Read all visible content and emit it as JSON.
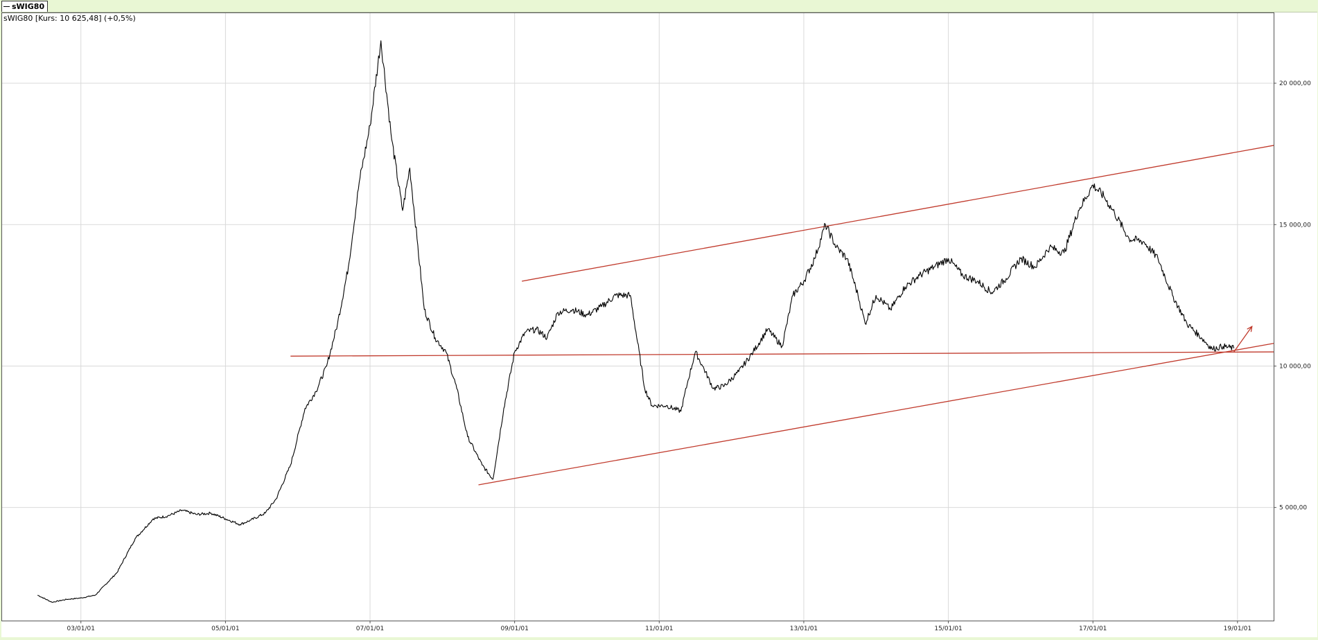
{
  "legend": {
    "label": "sWIG80"
  },
  "info_label": "sWIG80 [Kurs: 10 625,48] (+0,5%)",
  "colors": {
    "series": "#000000",
    "trendline": "#c0392b",
    "grid": "#d9d9d9",
    "frame_bg": "#ffffff",
    "page_bg": "#e9f7d4"
  },
  "chart_data": {
    "type": "line",
    "title": "",
    "xlabel": "",
    "ylabel": "",
    "x_ticks": [
      "03/01/01",
      "05/01/01",
      "07/01/01",
      "09/01/01",
      "11/01/01",
      "13/01/01",
      "15/01/01",
      "17/01/01",
      "19/01/01"
    ],
    "y_ticks": [
      {
        "value": 5000,
        "label": "5 000,00"
      },
      {
        "value": 10000,
        "label": "10 000,00"
      },
      {
        "value": 15000,
        "label": "15 000,00"
      },
      {
        "value": 20000,
        "label": "20 000,00"
      }
    ],
    "xlim": [
      2001.9,
      2019.5
    ],
    "ylim": [
      1000,
      22500
    ],
    "grid": true,
    "legend_position": "top-left",
    "series": [
      {
        "name": "sWIG80",
        "x": [
          2002.4,
          2002.6,
          2002.8,
          2003.0,
          2003.2,
          2003.5,
          2003.75,
          2004.0,
          2004.2,
          2004.4,
          2004.6,
          2004.8,
          2005.0,
          2005.2,
          2005.35,
          2005.55,
          2005.7,
          2005.9,
          2006.1,
          2006.25,
          2006.4,
          2006.55,
          2006.7,
          2006.85,
          2007.0,
          2007.15,
          2007.3,
          2007.45,
          2007.55,
          2007.65,
          2007.75,
          2007.9,
          2008.05,
          2008.2,
          2008.35,
          2008.55,
          2008.7,
          2008.85,
          2009.0,
          2009.15,
          2009.3,
          2009.45,
          2009.6,
          2009.8,
          2010.0,
          2010.2,
          2010.4,
          2010.6,
          2010.8,
          2010.9,
          2011.1,
          2011.3,
          2011.4,
          2011.5,
          2011.6,
          2011.75,
          2011.9,
          2012.1,
          2012.3,
          2012.5,
          2012.7,
          2012.85,
          2013.0,
          2013.15,
          2013.3,
          2013.45,
          2013.6,
          2013.75,
          2013.85,
          2014.0,
          2014.2,
          2014.4,
          2014.6,
          2014.8,
          2015.0,
          2015.2,
          2015.4,
          2015.6,
          2015.8,
          2016.0,
          2016.2,
          2016.4,
          2016.6,
          2016.8,
          2017.0,
          2017.15,
          2017.3,
          2017.5,
          2017.7,
          2017.9,
          2018.1,
          2018.3,
          2018.5,
          2018.65,
          2018.8,
          2018.95
        ],
        "values": [
          1900,
          1650,
          1750,
          1800,
          1900,
          2700,
          3900,
          4600,
          4700,
          4900,
          4750,
          4800,
          4600,
          4400,
          4550,
          4800,
          5300,
          6500,
          8500,
          9100,
          10000,
          11500,
          13500,
          16500,
          18500,
          21500,
          18000,
          15500,
          17000,
          14500,
          12000,
          11000,
          10500,
          9200,
          7500,
          6500,
          6000,
          8500,
          10500,
          11200,
          11300,
          11000,
          11900,
          12000,
          11800,
          12100,
          12500,
          12500,
          9200,
          8600,
          8600,
          8400,
          9500,
          10500,
          10000,
          9200,
          9300,
          9800,
          10500,
          11300,
          10700,
          12500,
          13000,
          13800,
          15000,
          14200,
          13800,
          12500,
          11500,
          12500,
          12000,
          12800,
          13200,
          13500,
          13800,
          13200,
          13000,
          12600,
          13100,
          13800,
          13500,
          14200,
          14000,
          15500,
          16400,
          16000,
          15400,
          14500,
          14400,
          13800,
          12500,
          11500,
          11000,
          10600,
          10700,
          10625
        ]
      }
    ],
    "trendlines": [
      {
        "label": "",
        "from": [
          2009.1,
          13000
        ],
        "to": [
          2019.5,
          17800
        ]
      },
      {
        "label": "",
        "from": [
          2005.9,
          10350
        ],
        "to": [
          2019.5,
          10500
        ]
      },
      {
        "label": "",
        "from": [
          2008.5,
          5800
        ],
        "to": [
          2019.5,
          10800
        ]
      }
    ],
    "annotation_arrow": {
      "from": [
        2018.95,
        10500
      ],
      "to": [
        2019.2,
        11400
      ]
    }
  }
}
